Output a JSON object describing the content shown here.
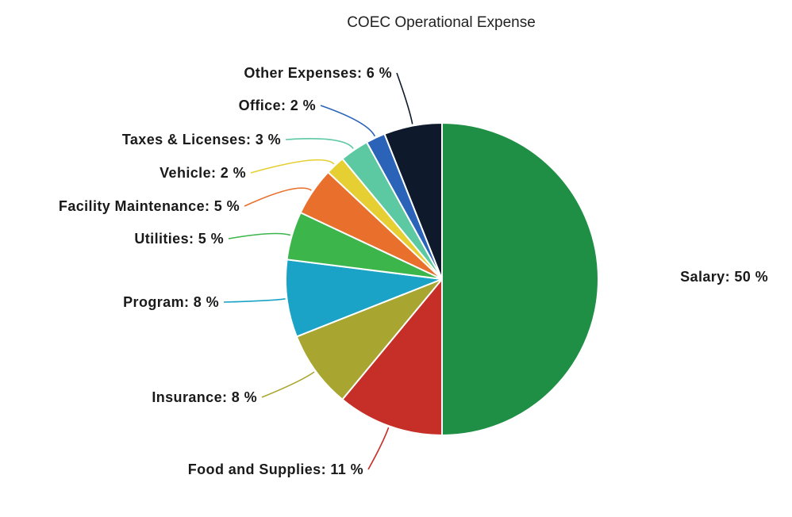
{
  "chart_data": {
    "type": "pie",
    "title": "COEC Operational Expense",
    "unit": "%",
    "start": "12 o'clock",
    "direction": "clockwise",
    "slices": [
      {
        "label": "Salary",
        "display": "Salary: 50 %",
        "value": 50,
        "color": "#1f8f45"
      },
      {
        "label": "Food and Supplies",
        "display": "Food and Supplies: 11 %",
        "value": 11,
        "color": "#c62f27"
      },
      {
        "label": "Insurance",
        "display": "Insurance: 8 %",
        "value": 8,
        "color": "#a9a531"
      },
      {
        "label": "Program",
        "display": "Program: 8 %",
        "value": 8,
        "color": "#1aa3c7"
      },
      {
        "label": "Utilities",
        "display": "Utilities: 5 %",
        "value": 5,
        "color": "#3cb54a"
      },
      {
        "label": "Facility Maintenance",
        "display": "Facility Maintenance: 5 %",
        "value": 5,
        "color": "#e8702c"
      },
      {
        "label": "Vehicle",
        "display": "Vehicle: 2 %",
        "value": 2,
        "color": "#e6cf33"
      },
      {
        "label": "Taxes & Licenses",
        "display": "Taxes & Licenses: 3 %",
        "value": 3,
        "color": "#5cc9a2"
      },
      {
        "label": "Office",
        "display": "Office: 2 %",
        "value": 2,
        "color": "#2a63b8"
      },
      {
        "label": "Other Expenses",
        "display": "Other Expenses: 6 %",
        "value": 6,
        "color": "#0e1a2c"
      }
    ]
  }
}
